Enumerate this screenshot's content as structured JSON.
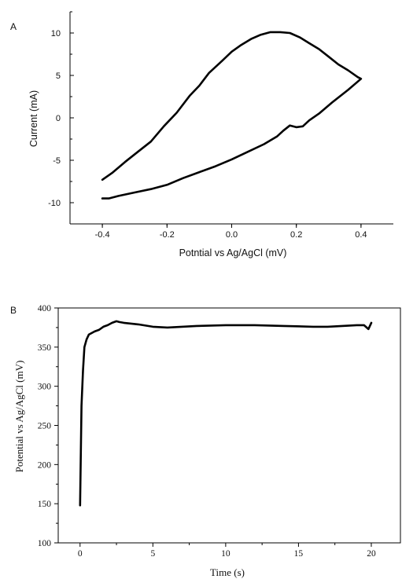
{
  "chart_data": [
    {
      "panel": "A",
      "type": "line",
      "xlabel": "Potntial vs Ag/AgCl (mV)",
      "ylabel": "Current (mA)",
      "xlim": [
        -0.5,
        0.5
      ],
      "ylim": [
        -12.5,
        12.5
      ],
      "xticks": [
        -0.4,
        -0.2,
        0.0,
        0.2,
        0.4
      ],
      "xtick_labels": [
        "-0.4",
        "-0.2",
        "0.0",
        "0.2",
        "0.4"
      ],
      "yticks": [
        -10,
        -5,
        0,
        5,
        10
      ],
      "ytick_labels": [
        "-10",
        "-5",
        "0",
        "5",
        "10"
      ],
      "grid": false,
      "series": [
        {
          "x": [
            -0.4,
            -0.37,
            -0.33,
            -0.29,
            -0.25,
            -0.21,
            -0.17,
            -0.13,
            -0.1,
            -0.07,
            -0.03,
            0.0,
            0.03,
            0.06,
            0.09,
            0.12,
            0.15,
            0.18,
            0.21,
            0.24,
            0.27,
            0.3,
            0.33,
            0.36,
            0.39,
            0.4,
            0.36,
            0.31,
            0.27,
            0.24,
            0.22,
            0.2,
            0.18,
            0.16,
            0.14,
            0.1,
            0.05,
            0.0,
            -0.05,
            -0.1,
            -0.15,
            -0.2,
            -0.25,
            -0.3,
            -0.35,
            -0.38,
            -0.4
          ],
          "y": [
            -7.3,
            -6.5,
            -5.2,
            -4.0,
            -2.8,
            -1.0,
            0.6,
            2.6,
            3.8,
            5.3,
            6.7,
            7.8,
            8.6,
            9.3,
            9.8,
            10.1,
            10.1,
            10.0,
            9.5,
            8.8,
            8.1,
            7.2,
            6.3,
            5.6,
            4.8,
            4.6,
            3.3,
            1.8,
            0.5,
            -0.3,
            -1.0,
            -1.1,
            -0.9,
            -1.5,
            -2.2,
            -3.1,
            -4.0,
            -4.9,
            -5.7,
            -6.4,
            -7.1,
            -7.9,
            -8.4,
            -8.8,
            -9.2,
            -9.5,
            -9.5
          ]
        }
      ]
    },
    {
      "panel": "B",
      "type": "line",
      "xlabel": "Time (s)",
      "ylabel": "Potential vs Ag/AgCl (mV)",
      "xlim": [
        -1.5,
        22
      ],
      "ylim": [
        100,
        400
      ],
      "xticks": [
        0,
        5,
        10,
        15,
        20
      ],
      "xtick_labels": [
        "0",
        "5",
        "10",
        "15",
        "20"
      ],
      "yticks": [
        100,
        150,
        200,
        250,
        300,
        350,
        400
      ],
      "ytick_labels": [
        "100",
        "150",
        "200",
        "250",
        "300",
        "350",
        "400"
      ],
      "grid": false,
      "series": [
        {
          "x": [
            0.0,
            0.1,
            0.2,
            0.3,
            0.45,
            0.6,
            0.8,
            1.0,
            1.3,
            1.6,
            1.9,
            2.2,
            2.5,
            2.7,
            3.0,
            4.0,
            5.0,
            6.0,
            8.0,
            10.0,
            12.0,
            14.0,
            16.0,
            17.0,
            18.0,
            19.0,
            19.5,
            19.8,
            20.0
          ],
          "y": [
            148,
            275,
            320,
            350,
            360,
            366,
            368,
            370,
            372,
            376,
            378,
            381,
            383,
            382,
            381,
            379,
            376,
            375,
            377,
            378,
            378,
            377,
            376,
            376,
            377,
            378,
            378,
            373,
            381
          ]
        }
      ]
    }
  ],
  "panels": {
    "a": {
      "label": "A"
    },
    "b": {
      "label": "B"
    }
  }
}
